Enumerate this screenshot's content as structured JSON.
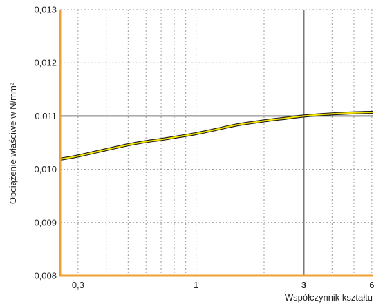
{
  "chart_data": {
    "type": "line",
    "title": "",
    "xlabel": "Współczynnik kształtu",
    "ylabel": "Obciążenie właściwe w N/mm²",
    "xscale": "log",
    "xlim": [
      0.25,
      6.05
    ],
    "ylim": [
      0.008,
      0.013
    ],
    "x_ticks": [
      {
        "value": 0.3,
        "label": "0,3",
        "bold": false
      },
      {
        "value": 1,
        "label": "1",
        "bold": false
      },
      {
        "value": 3,
        "label": "3",
        "bold": true
      },
      {
        "value": 6,
        "label": "6",
        "bold": false
      }
    ],
    "y_ticks": [
      {
        "value": 0.008,
        "label": "0,008"
      },
      {
        "value": 0.009,
        "label": "0,009"
      },
      {
        "value": 0.01,
        "label": "0,010"
      },
      {
        "value": 0.011,
        "label": "0,011"
      },
      {
        "value": 0.012,
        "label": "0,012"
      },
      {
        "value": 0.013,
        "label": "0,013"
      }
    ],
    "x_minor_grid": [
      0.3,
      0.4,
      0.5,
      0.6,
      0.7,
      0.8,
      0.9,
      1,
      2,
      3,
      4,
      5,
      6
    ],
    "grid": true,
    "reference_lines": {
      "x": 3,
      "y": 0.011
    },
    "series": [
      {
        "x": [
          0.25,
          0.3,
          0.4,
          0.5,
          0.6,
          0.7,
          0.8,
          1.0,
          1.2,
          1.5,
          2.0,
          2.5,
          3.0,
          4.0,
          5.0,
          6.05
        ],
        "y": [
          0.01019,
          0.01025,
          0.01037,
          0.01046,
          0.01052,
          0.01056,
          0.0106,
          0.01067,
          0.01074,
          0.01083,
          0.01091,
          0.01096,
          0.011,
          0.01104,
          0.01106,
          0.01107
        ]
      }
    ],
    "colors": {
      "axis": "#f0a030",
      "grid": "#999999",
      "reference": "#7a7a7a",
      "curve_fill": "#f2e200",
      "curve_edge": "#1a1a1a"
    }
  }
}
